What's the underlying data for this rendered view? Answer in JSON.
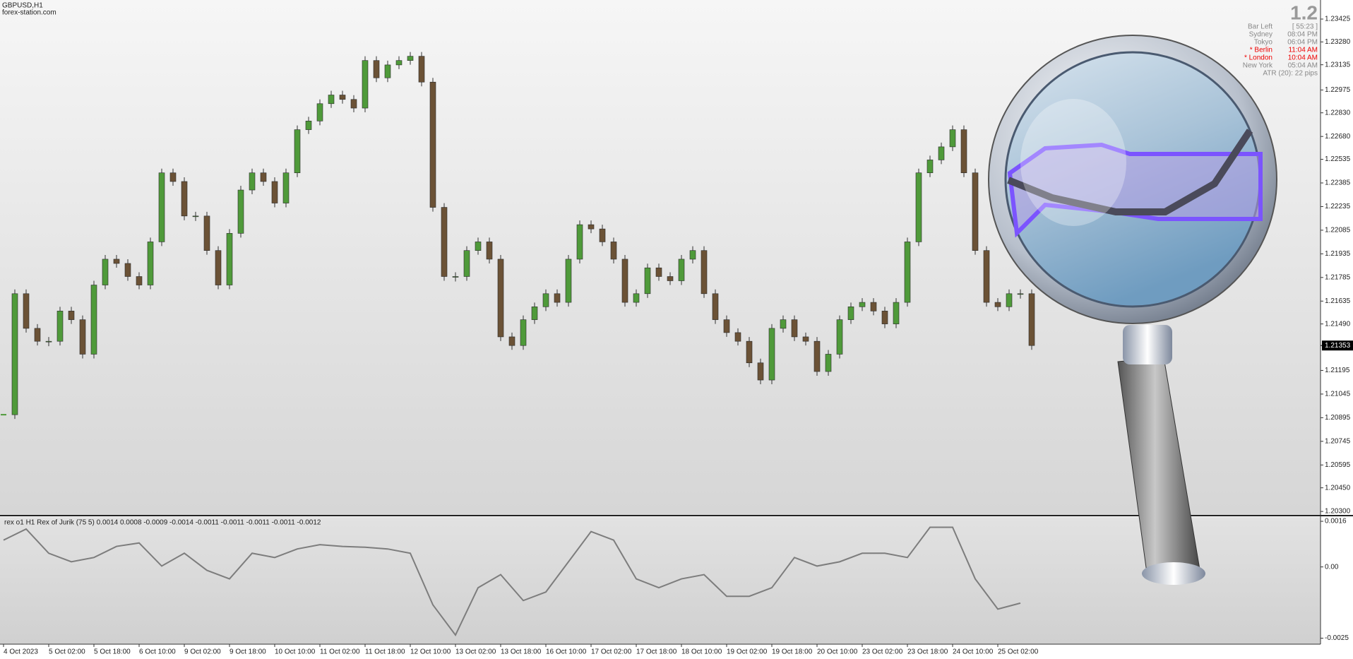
{
  "header": {
    "symbol": "GBPUSD,H1",
    "site": "forex-station.com"
  },
  "info_panel": {
    "big": "1.2",
    "timer": "[ 55:23 ]",
    "bar_left": "Bar Left",
    "clocks": [
      {
        "city": "Sydney",
        "time": "08:04 PM"
      },
      {
        "city": "Tokyo",
        "time": "06:04 PM"
      },
      {
        "city": "* Berlin",
        "time": "11:04 AM"
      },
      {
        "city": "* London",
        "time": "10:04 AM"
      },
      {
        "city": "New York",
        "time": "05:04 AM"
      }
    ],
    "atr": "ATR (20): 22 pips"
  },
  "chart_data": [
    {
      "type": "candlestick",
      "title": "GBPUSD,H1",
      "up_color": "#4f9a3a",
      "down_color": "#6b5236",
      "values": [
        1.20914,
        1.21682,
        1.21462,
        1.2138,
        1.2138,
        1.21572,
        1.21517,
        1.21298,
        1.21737,
        1.21901,
        1.21874,
        1.21791,
        1.21737,
        1.22011,
        1.22449,
        1.22394,
        1.22175,
        1.22175,
        1.21956,
        1.21737,
        1.22065,
        1.2234,
        1.22449,
        1.22394,
        1.22257,
        1.22449,
        1.22723,
        1.22778,
        1.22888,
        1.22943,
        1.22915,
        1.2286,
        1.23162,
        1.23052,
        1.23134,
        1.23162,
        1.23189,
        1.23025,
        1.2223,
        1.21791,
        1.21791,
        1.21956,
        1.22011,
        1.21901,
        1.21408,
        1.21353,
        1.21517,
        1.21599,
        1.21682,
        1.21627,
        1.21901,
        1.2212,
        1.22093,
        1.22011,
        1.21901,
        1.21627,
        1.21682,
        1.21846,
        1.21791,
        1.21764,
        1.21901,
        1.21956,
        1.21682,
        1.21517,
        1.21435,
        1.2138,
        1.21243,
        1.21134,
        1.21462,
        1.21517,
        1.21408,
        1.2138,
        1.21188,
        1.21298,
        1.21517,
        1.21599,
        1.21627,
        1.21572,
        1.2149,
        1.21627,
        1.22011,
        1.22449,
        1.22531,
        1.22614,
        1.22723,
        1.22449,
        1.21956,
        1.21627,
        1.21599,
        1.21682,
        1.21682,
        1.21353
      ],
      "ylim": [
        1.20278,
        1.23546
      ],
      "yticks": [
        1.23425,
        {
          "value": 1.2328,
          "label": "1.23280"
        },
        1.23135,
        1.22975,
        {
          "value": 1.2283,
          "label": "1.22830"
        },
        {
          "value": 1.2268,
          "label": "1.22680"
        },
        1.22535,
        1.22385,
        1.22235,
        1.22085,
        1.21935,
        1.21785,
        1.21635,
        {
          "value": 1.2149,
          "label": "1.21490"
        },
        1.21195,
        1.21045,
        1.20895,
        1.20745,
        1.20595,
        {
          "value": 1.2045,
          "label": "1.20450"
        },
        {
          "value": 1.203,
          "label": "1.20300"
        }
      ]
    },
    {
      "type": "line",
      "title": "rex o1 H1 Rex of Jurik (75 5) 0.0014 0.0008 -0.0009 -0.0014 -0.0011 -0.0011 -0.0011 -0.0011 -0.0012",
      "x_labels": [
        "4 Oct 2023",
        "5 Oct 02:00",
        "5 Oct 18:00",
        "6 Oct 10:00",
        "9 Oct 02:00",
        "9 Oct 18:00",
        "10 Oct 10:00",
        "11 Oct 02:00",
        "11 Oct 18:00",
        "12 Oct 10:00",
        "13 Oct 02:00",
        "13 Oct 18:00",
        "16 Oct 10:00",
        "17 Oct 02:00",
        "17 Oct 18:00",
        "18 Oct 10:00",
        "19 Oct 02:00",
        "19 Oct 18:00",
        "20 Oct 10:00",
        "23 Oct 02:00",
        "23 Oct 18:00",
        "24 Oct 10:00",
        "25 Oct 02:00"
      ],
      "series": [
        {
          "color": "#7d7d7d",
          "values": [
            0.00094,
            0.00133,
            0.00048,
            0.00018,
            0.00033,
            0.00072,
            0.00084,
            3e-05,
            0.00048,
            -0.00012,
            -0.00042,
            0.00048,
            0.00033,
            0.00063,
            0.00078,
            0.00072,
            0.00069,
            0.00063,
            0.00048,
            -0.00133,
            -0.00239,
            -0.00073,
            -0.00027,
            -0.00118,
            -0.00088,
            0.00018,
            0.00124,
            0.00094,
            -0.00042,
            -0.00073,
            -0.00042,
            -0.00027,
            -0.00103,
            -0.00103,
            -0.00073,
            0.00033,
            3e-05,
            0.00018,
            0.00048,
            0.00048,
            0.00033,
            0.00139,
            0.00139,
            -0.00042,
            -0.00148,
            -0.00127
          ]
        }
      ],
      "ylim": [
        -0.00271,
        0.00175
      ],
      "yticks": [
        0.0016,
        {
          "value": 0,
          "label": "0.00"
        },
        -0.0025
      ]
    }
  ]
}
